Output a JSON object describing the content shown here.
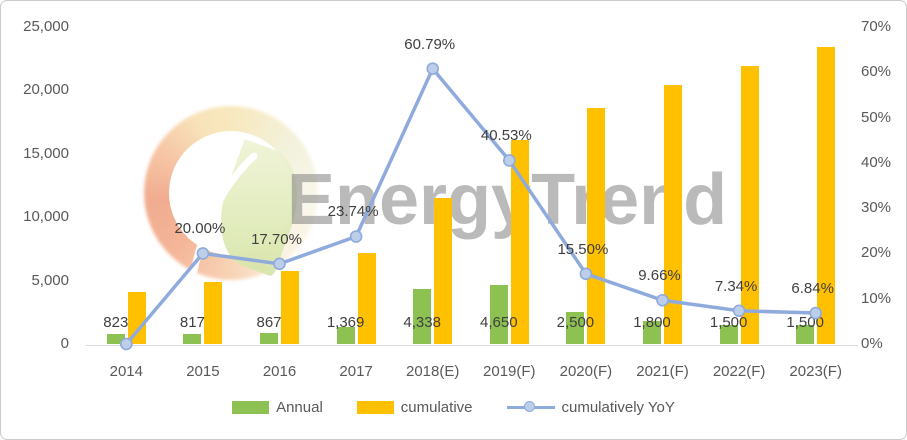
{
  "watermark": {
    "brand": "EnergyTrend"
  },
  "chart_data": {
    "type": "combo",
    "title": "",
    "grid": false,
    "legend_position": "bottom",
    "categories": [
      "2014",
      "2015",
      "2016",
      "2017",
      "2018(E)",
      "2019(F)",
      "2020(F)",
      "2021(F)",
      "2022(F)",
      "2023(F)"
    ],
    "series": [
      {
        "name": "Annual",
        "type": "bar",
        "axis": "left",
        "color": "#8DC152",
        "values": [
          823,
          817,
          867,
          1369,
          4338,
          4650,
          2500,
          1800,
          1500,
          1500
        ],
        "labels": [
          "823",
          "817",
          "867",
          "1,369",
          "4,338",
          "4,650",
          "2,500",
          "1,800",
          "1,500",
          "1,500"
        ]
      },
      {
        "name": "cumulative",
        "type": "bar",
        "axis": "left",
        "color": "#FFC000",
        "values": [
          4085,
          4902,
          5769,
          7138,
          11476,
          16126,
          18626,
          20426,
          21926,
          23426
        ],
        "labels": [
          "",
          "",
          "",
          "",
          "",
          "",
          "",
          "",
          "",
          ""
        ]
      },
      {
        "name": "cumulatively YoY",
        "type": "line",
        "axis": "right",
        "color": "#8FAADC",
        "marker_fill": "#BDCFE8",
        "values": [
          0,
          20.0,
          17.7,
          23.74,
          60.79,
          40.53,
          15.5,
          9.66,
          7.34,
          6.84
        ],
        "labels": [
          "",
          "20.00%",
          "17.70%",
          "23.74%",
          "60.79%",
          "40.53%",
          "15.50%",
          "9.66%",
          "7.34%",
          "6.84%"
        ]
      }
    ],
    "axes": {
      "left": {
        "min": 0,
        "max": 25000,
        "tick_labels": [
          "25,000",
          "20,000",
          "15,000",
          "10,000",
          "5,000",
          "0"
        ],
        "tick_values": [
          25000,
          20000,
          15000,
          10000,
          5000,
          0
        ]
      },
      "right": {
        "min": 0,
        "max": 70,
        "tick_labels": [
          "70%",
          "60%",
          "50%",
          "40%",
          "30%",
          "20%",
          "10%",
          "0%"
        ],
        "tick_values": [
          70,
          60,
          50,
          40,
          30,
          20,
          10,
          0
        ]
      }
    },
    "legend": [
      {
        "label": "Annual",
        "color": "#8DC152",
        "type": "bar"
      },
      {
        "label": "cumulative",
        "color": "#FFC000",
        "type": "bar"
      },
      {
        "label": "cumulatively YoY",
        "color": "#8FAADC",
        "marker_fill": "#BDCFE8",
        "type": "line"
      }
    ]
  }
}
